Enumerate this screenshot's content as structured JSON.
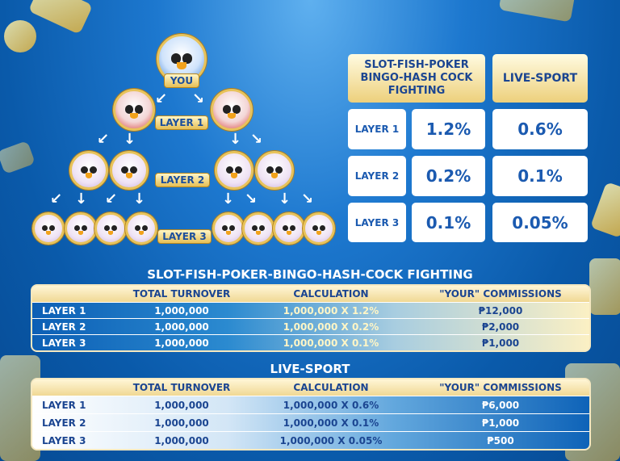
{
  "tree": {
    "you_label": "YOU",
    "layer1_label": "LAYER 1",
    "layer2_label": "LAYER 2",
    "layer3_label": "LAYER 3"
  },
  "rate_table": {
    "headers": [
      "SLOT-FISH-POKER BINGO-HASH COCK FIGHTING",
      "LIVE-SPORT"
    ],
    "rows": [
      {
        "label": "LAYER 1",
        "slot": "1.2%",
        "sport": "0.6%"
      },
      {
        "label": "LAYER 2",
        "slot": "0.2%",
        "sport": "0.1%"
      },
      {
        "label": "LAYER 3",
        "slot": "0.1%",
        "sport": "0.05%"
      }
    ]
  },
  "table1": {
    "title": "SLOT-FISH-POKER-BINGO-HASH-COCK FIGHTING",
    "headers": [
      "",
      "TOTAL TURNOVER",
      "CALCULATION",
      "\"YOUR\" COMMISSIONS"
    ],
    "rows": [
      [
        "LAYER 1",
        "1,000,000",
        "1,000,000 X 1.2%",
        "₱12,000"
      ],
      [
        "LAYER 2",
        "1,000,000",
        "1,000,000 X 0.2%",
        "₱2,000"
      ],
      [
        "LAYER 3",
        "1,000,000",
        "1,000,000 X 0.1%",
        "₱1,000"
      ]
    ]
  },
  "table2": {
    "title": "LIVE-SPORT",
    "headers": [
      "",
      "TOTAL TURNOVER",
      "CALCULATION",
      "\"YOUR\" COMMISSIONS"
    ],
    "rows": [
      [
        "LAYER 1",
        "1,000,000",
        "1,000,000 X 0.6%",
        "₱6,000"
      ],
      [
        "LAYER 2",
        "1,000,000",
        "1,000,000 X 0.1%",
        "₱1,000"
      ],
      [
        "LAYER 3",
        "1,000,000",
        "1,000,000 X 0.05%",
        "₱500"
      ]
    ]
  },
  "colors": {
    "background": "#0a5aaa",
    "gold": "#edd07c",
    "text_blue": "#1b4591"
  }
}
